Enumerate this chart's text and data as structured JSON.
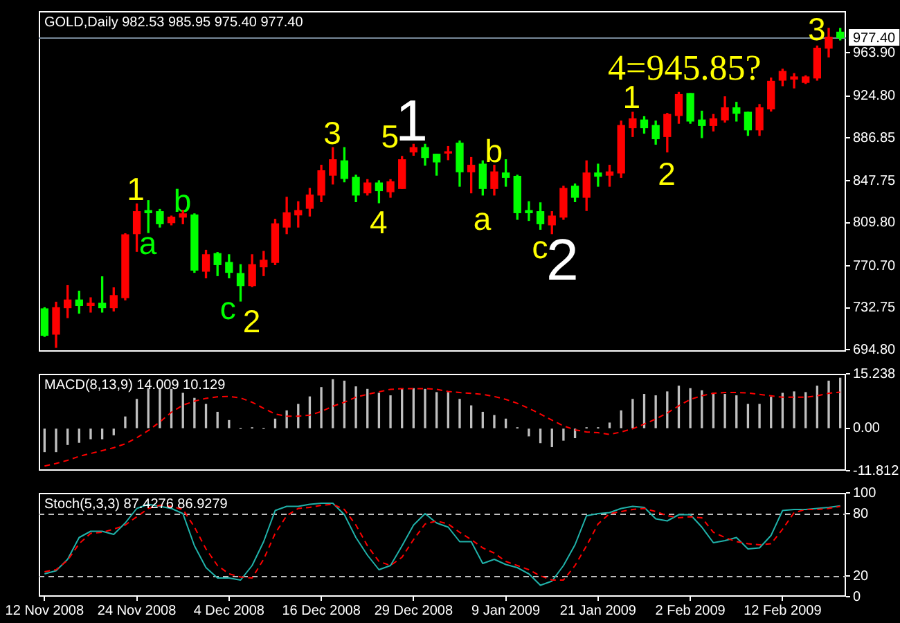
{
  "chart_data": [
    {
      "type": "candlestick",
      "title": "GOLD,Daily 982.53 985.95 975.40 977.40",
      "categories": [
        "12 Nov 2008",
        null,
        null,
        null,
        null,
        null,
        null,
        null,
        "24 Nov 2008",
        null,
        null,
        null,
        null,
        null,
        null,
        null,
        "4 Dec 2008",
        null,
        null,
        null,
        null,
        null,
        null,
        null,
        "16 Dec 2008",
        null,
        null,
        null,
        null,
        null,
        null,
        null,
        "29 Dec 2008",
        null,
        null,
        null,
        null,
        null,
        null,
        null,
        "9 Jan 2009",
        null,
        null,
        null,
        null,
        null,
        null,
        null,
        "21 Jan 2009",
        null,
        null,
        null,
        null,
        null,
        null,
        null,
        "2 Feb 2009",
        null,
        null,
        null,
        null,
        null,
        null,
        null,
        "12 Feb 2009",
        null,
        null,
        null,
        null,
        null
      ],
      "ohlc": [
        [
          732,
          733,
          707,
          708
        ],
        [
          709,
          738,
          697,
          733
        ],
        [
          733,
          753,
          724,
          740
        ],
        [
          740,
          748,
          728,
          735
        ],
        [
          735,
          742,
          729,
          737
        ],
        [
          737,
          761,
          729,
          733
        ],
        [
          733,
          751,
          730,
          744
        ],
        [
          742,
          800,
          740,
          799
        ],
        [
          800,
          827,
          784,
          820
        ],
        [
          821,
          830,
          801,
          819
        ],
        [
          820,
          822,
          806,
          809
        ],
        [
          810,
          816,
          808,
          815
        ],
        [
          815,
          821,
          809,
          818
        ],
        [
          817,
          818,
          765,
          767
        ],
        [
          766,
          785,
          760,
          781
        ],
        [
          782,
          783,
          762,
          772
        ],
        [
          774,
          781,
          760,
          765
        ],
        [
          764,
          772,
          739,
          753
        ],
        [
          753,
          781,
          752,
          772
        ],
        [
          770,
          784,
          762,
          776
        ],
        [
          774,
          813,
          772,
          809
        ],
        [
          806,
          833,
          800,
          819
        ],
        [
          817,
          829,
          806,
          821
        ],
        [
          823,
          841,
          816,
          835
        ],
        [
          835,
          862,
          829,
          857
        ],
        [
          853,
          878,
          845,
          867
        ],
        [
          866,
          878,
          847,
          850
        ],
        [
          851,
          853,
          829,
          835
        ],
        [
          837,
          849,
          835,
          846
        ],
        [
          846,
          848,
          828,
          839
        ],
        [
          838,
          849,
          833,
          847
        ],
        [
          841,
          870,
          841,
          867
        ],
        [
          874,
          881,
          871,
          878
        ],
        [
          878,
          881,
          862,
          869
        ],
        [
          872,
          872,
          853,
          865
        ],
        [
          873,
          879,
          867,
          874
        ],
        [
          882,
          884,
          843,
          856
        ],
        [
          856,
          869,
          837,
          862
        ],
        [
          863,
          866,
          835,
          841
        ],
        [
          841,
          862,
          835,
          856
        ],
        [
          855,
          867,
          843,
          851
        ],
        [
          852,
          853,
          813,
          819
        ],
        [
          821,
          829,
          812,
          819
        ],
        [
          820,
          828,
          804,
          809
        ],
        [
          808,
          820,
          800,
          816
        ],
        [
          815,
          843,
          813,
          841
        ],
        [
          843,
          845,
          829,
          833
        ],
        [
          833,
          866,
          821,
          855
        ],
        [
          855,
          863,
          843,
          852
        ],
        [
          853,
          862,
          843,
          856
        ],
        [
          855,
          902,
          851,
          898
        ],
        [
          896,
          910,
          888,
          904
        ],
        [
          903,
          906,
          891,
          896
        ],
        [
          898,
          902,
          881,
          886
        ],
        [
          888,
          909,
          874,
          908
        ],
        [
          907,
          928,
          900,
          926
        ],
        [
          927,
          927,
          900,
          902
        ],
        [
          903,
          911,
          887,
          898
        ],
        [
          898,
          908,
          893,
          904
        ],
        [
          903,
          924,
          901,
          914
        ],
        [
          914,
          919,
          902,
          909
        ],
        [
          910,
          910,
          889,
          894
        ],
        [
          894,
          917,
          889,
          914
        ],
        [
          913,
          941,
          911,
          938
        ],
        [
          939,
          949,
          934,
          947
        ],
        [
          940,
          945,
          932,
          942
        ],
        [
          937,
          943,
          936,
          942
        ],
        [
          941,
          970,
          939,
          968
        ],
        [
          968,
          986,
          960,
          978
        ],
        [
          982.53,
          985.95,
          975.4,
          977.4
        ]
      ],
      "colors": [
        "#00ff00",
        "#ff0000",
        "#ff0000",
        "#00ff00",
        "#ff0000",
        "#00ff00",
        "#ff0000",
        "#ff0000",
        "#ff0000",
        "#00ff00",
        "#00ff00",
        "#ff0000",
        "#ff0000",
        "#00ff00",
        "#ff0000",
        "#00ff00",
        "#00ff00",
        "#00ff00",
        "#ff0000",
        "#ff0000",
        "#ff0000",
        "#ff0000",
        "#ff0000",
        "#ff0000",
        "#ff0000",
        "#ff0000",
        "#00ff00",
        "#00ff00",
        "#ff0000",
        "#00ff00",
        "#ff0000",
        "#ff0000",
        "#ff0000",
        "#00ff00",
        "#00ff00",
        "#ff0000",
        "#00ff00",
        "#ff0000",
        "#00ff00",
        "#ff0000",
        "#00ff00",
        "#00ff00",
        "#00ff00",
        "#00ff00",
        "#ff0000",
        "#ff0000",
        "#00ff00",
        "#ff0000",
        "#00ff00",
        "#ff0000",
        "#ff0000",
        "#ff0000",
        "#00ff00",
        "#00ff00",
        "#ff0000",
        "#ff0000",
        "#00ff00",
        "#00ff00",
        "#ff0000",
        "#ff0000",
        "#00ff00",
        "#00ff00",
        "#ff0000",
        "#ff0000",
        "#ff0000",
        "#ff0000",
        "#ff0000",
        "#ff0000",
        "#ff0000",
        "#00ff00"
      ],
      "ylim": [
        693.2,
        1001.6
      ],
      "yticks": [
        {
          "value": 694.8,
          "label": "694.80"
        },
        732.75,
        {
          "value": 770.7,
          "label": "770.70"
        },
        {
          "value": 809.8,
          "label": "809.80"
        },
        847.75,
        886.85,
        {
          "value": 924.8,
          "label": "924.80"
        },
        {
          "value": 963.9,
          "label": "963.90"
        }
      ],
      "tick_labels": "y",
      "ref_lines": [
        {
          "axis": "y",
          "value": 977.4,
          "label": "977.40",
          "color": "#778899"
        }
      ],
      "annotations": [
        "1",
        "a",
        "b",
        "c",
        "2",
        "3",
        "4",
        "5",
        "1",
        "a",
        "b",
        "c",
        "2",
        "1",
        "2",
        "4=945.85?",
        "3"
      ]
    },
    {
      "type": "bar",
      "title": "MACD(8,13,9) 14.009 10.129",
      "categories": [
        "12 Nov 2008",
        null,
        null,
        null,
        null,
        null,
        null,
        null,
        "24 Nov 2008",
        null,
        null,
        null,
        null,
        null,
        null,
        null,
        "4 Dec 2008",
        null,
        null,
        null,
        null,
        null,
        null,
        null,
        "16 Dec 2008",
        null,
        null,
        null,
        null,
        null,
        null,
        null,
        "29 Dec 2008",
        null,
        null,
        null,
        null,
        null,
        null,
        null,
        "9 Jan 2009",
        null,
        null,
        null,
        null,
        null,
        null,
        null,
        "21 Jan 2009",
        null,
        null,
        null,
        null,
        null,
        null,
        null,
        "2 Feb 2009",
        null,
        null,
        null,
        null,
        null,
        null,
        null,
        "12 Feb 2009",
        null,
        null,
        null,
        null,
        null
      ],
      "series": [
        {
          "color": "#c0c0c0",
          "values": [
            -6.5,
            -6.5,
            -4.5,
            -3.9,
            -2.9,
            -2.9,
            -1.8,
            3.2,
            8.1,
            11.1,
            11.1,
            10.9,
            9.8,
            8.4,
            6.7,
            4.5,
            2.2,
            0,
            0.1,
            0,
            2.6,
            4.9,
            6.7,
            8.8,
            11.4,
            13.6,
            13.2,
            11.6,
            10.9,
            9.8,
            9.1,
            10.9,
            11.1,
            10.9,
            10,
            10,
            8.1,
            6.3,
            4.5,
            3.6,
            2.6,
            0.1,
            -2.1,
            -4,
            -5.1,
            -3.3,
            -2.6,
            0.1,
            0.1,
            1.5,
            4.9,
            8.1,
            9.5,
            9.1,
            10.2,
            11.8,
            11.1,
            10.5,
            9.8,
            9.5,
            9.1,
            6.7,
            6.7,
            8.7,
            9.8,
            10.2,
            10,
            11.8,
            13.2,
            14.009
          ]
        },
        {
          "type": "line",
          "color": "#ff0000",
          "line_style": "dashed",
          "values": [
            -10.5,
            -9.8,
            -8.9,
            -7.8,
            -7,
            -6.2,
            -5.4,
            -4.3,
            -2.6,
            -0.6,
            1.8,
            4.5,
            6.5,
            7.6,
            8.4,
            8.8,
            8.9,
            8.5,
            7.3,
            5.6,
            4,
            3.4,
            3.4,
            3.7,
            4.7,
            6.2,
            7.3,
            8.7,
            9.5,
            10.2,
            10.9,
            11.1,
            11.1,
            11.1,
            10.9,
            10.3,
            10,
            9.8,
            9.5,
            8.9,
            8.1,
            7,
            5.6,
            4,
            2.3,
            0.7,
            -0.4,
            -1,
            -1.2,
            -1.7,
            -1,
            -0.1,
            1.2,
            2.6,
            4.3,
            6.3,
            8.1,
            9.1,
            9.8,
            10,
            10,
            9.9,
            9.5,
            9.1,
            8.7,
            8.7,
            8.7,
            9.1,
            9.8,
            10.129
          ]
        }
      ],
      "ylim": [
        -11.812,
        15.238
      ],
      "yticks": [
        -11.812,
        {
          "value": 0,
          "label": "0.00"
        },
        15.238
      ],
      "tick_labels": "y"
    },
    {
      "type": "line",
      "title": "Stoch(5,3,3) 87.4276 86.9279",
      "categories": [
        "12 Nov 2008",
        null,
        null,
        null,
        null,
        null,
        null,
        null,
        "24 Nov 2008",
        null,
        null,
        null,
        null,
        null,
        null,
        null,
        "4 Dec 2008",
        null,
        null,
        null,
        null,
        null,
        null,
        null,
        "16 Dec 2008",
        null,
        null,
        null,
        null,
        null,
        null,
        null,
        "29 Dec 2008",
        null,
        null,
        null,
        null,
        null,
        null,
        null,
        "9 Jan 2009",
        null,
        null,
        null,
        null,
        null,
        null,
        null,
        "21 Jan 2009",
        null,
        null,
        null,
        null,
        null,
        null,
        null,
        "2 Feb 2009",
        null,
        null,
        null,
        null,
        null,
        null,
        null,
        "12 Feb 2009",
        null,
        null,
        null,
        null,
        null
      ],
      "series": [
        {
          "color": "#20b2aa",
          "values": [
            22,
            25,
            36,
            57,
            63,
            63,
            60,
            71,
            85,
            89,
            87,
            85,
            80,
            49,
            28,
            18,
            18,
            16,
            30,
            53,
            83,
            87,
            87,
            89,
            90,
            90,
            79,
            57,
            40,
            26,
            30,
            49,
            69,
            80,
            71,
            67,
            53,
            53,
            32,
            36,
            31,
            28,
            22,
            11,
            15,
            30,
            50,
            78,
            80,
            81,
            85,
            87,
            86,
            75,
            73,
            79,
            79,
            67,
            52,
            54,
            57,
            46,
            47,
            59,
            83,
            84,
            84,
            85,
            86,
            87.4276
          ]
        },
        {
          "color": "#ff0000",
          "line_style": "dashed",
          "values": [
            24,
            26,
            35,
            51,
            61,
            62,
            65,
            69,
            77,
            85,
            88,
            87,
            84,
            67,
            46,
            30,
            22,
            19,
            18,
            36,
            61,
            78,
            85,
            86,
            88,
            89,
            84,
            69,
            49,
            34,
            30,
            38,
            55,
            70,
            73,
            70,
            62,
            55,
            47,
            42,
            34,
            30,
            26,
            20,
            16,
            16,
            30,
            49,
            70,
            80,
            82,
            84,
            85,
            82,
            78,
            76,
            77,
            76,
            62,
            57,
            53,
            51,
            50,
            51,
            65,
            81,
            84,
            84,
            85,
            86.9279
          ]
        }
      ],
      "ylim": [
        0,
        100
      ],
      "yticks": [
        0,
        20,
        80,
        100
      ],
      "ref_lines": [
        {
          "axis": "y",
          "value": 80,
          "color": "#c0c0c0",
          "line_style": "dashed"
        },
        {
          "axis": "y",
          "value": 20,
          "color": "#c0c0c0",
          "line_style": "dashed"
        }
      ]
    }
  ]
}
